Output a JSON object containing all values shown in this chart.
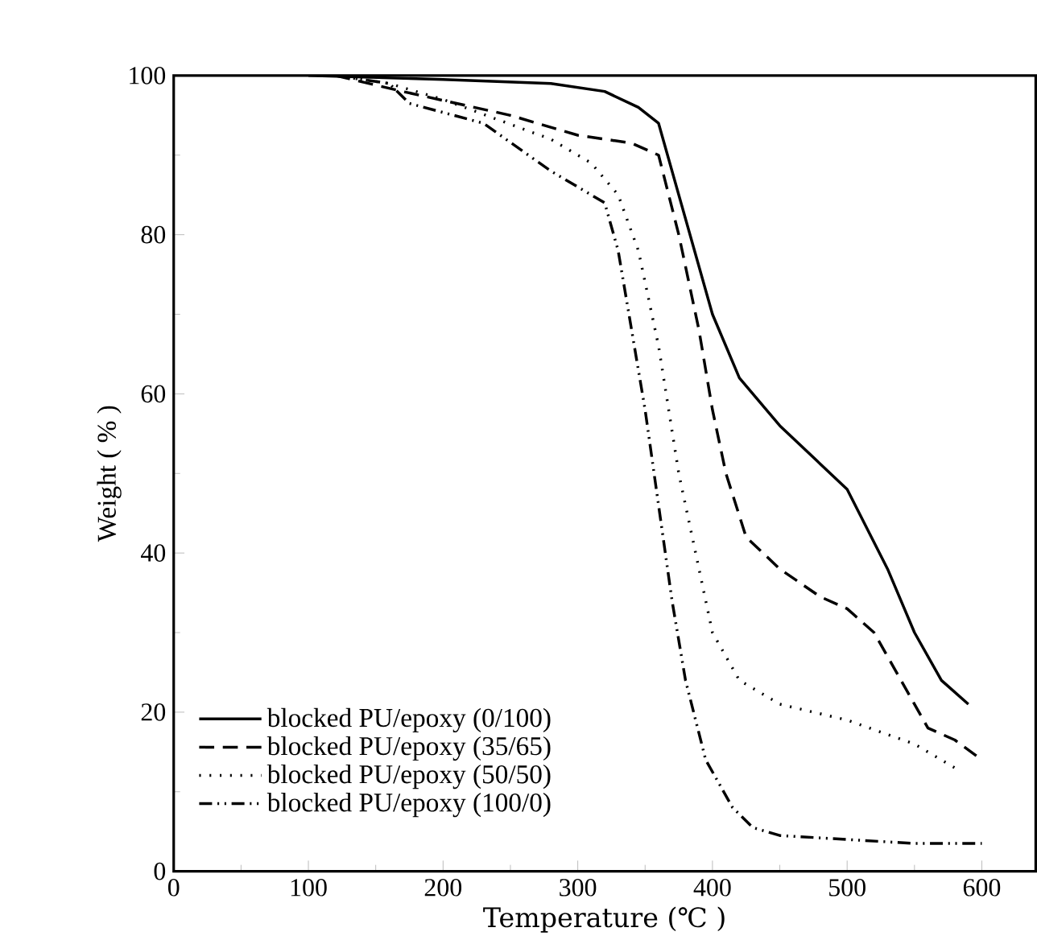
{
  "chart_data": {
    "type": "line",
    "xlabel": "Temperature (℃ )",
    "ylabel": "Weight ( % )",
    "xlim": [
      0,
      640
    ],
    "ylim": [
      0,
      100
    ],
    "xticks": [
      0,
      100,
      200,
      300,
      400,
      500,
      600
    ],
    "yticks": [
      0,
      20,
      40,
      60,
      80,
      100
    ],
    "legend": "bottom left",
    "grid": false,
    "marker": "none",
    "series": [
      {
        "name": "blocked PU/epoxy (0/100)",
        "color": "#000000",
        "line_style": "solid",
        "x": [
          100,
          200,
          280,
          320,
          345,
          360,
          380,
          400,
          420,
          450,
          500,
          530,
          550,
          570,
          590
        ],
        "values": [
          100,
          99.5,
          99,
          98,
          96,
          94,
          82,
          70,
          62,
          56,
          48,
          38,
          30,
          24,
          21
        ]
      },
      {
        "name": "blocked PU/epoxy (35/65)",
        "color": "#000000",
        "line_style": "dashed",
        "x": [
          120,
          170,
          250,
          300,
          340,
          360,
          375,
          390,
          400,
          410,
          425,
          450,
          480,
          500,
          520,
          540,
          560,
          580,
          600
        ],
        "values": [
          100,
          98,
          95,
          92.5,
          91.5,
          90,
          80,
          68,
          58,
          50,
          42,
          38,
          34.5,
          33,
          30,
          24,
          18,
          16.5,
          14
        ]
      },
      {
        "name": "blocked PU/epoxy (50/50)",
        "color": "#000000",
        "line_style": "dotted",
        "x": [
          120,
          160,
          200,
          280,
          310,
          330,
          345,
          360,
          375,
          390,
          400,
          420,
          450,
          500,
          550,
          580
        ],
        "values": [
          100,
          99,
          97,
          92,
          89,
          85,
          78,
          66,
          50,
          38,
          30,
          24,
          21,
          19,
          16,
          13
        ]
      },
      {
        "name": "blocked PU/epoxy (100/0)",
        "color": "#000000",
        "line_style": "dashdotdotted",
        "x": [
          120,
          160,
          175,
          230,
          280,
          300,
          320,
          330,
          340,
          350,
          360,
          370,
          380,
          395,
          415,
          430,
          450,
          500,
          550,
          600
        ],
        "values": [
          100,
          99,
          96.5,
          94,
          88,
          86,
          84,
          78,
          68,
          58,
          46,
          34,
          24,
          14,
          8,
          5.5,
          4.5,
          4,
          3.5,
          3.5
        ]
      }
    ]
  }
}
